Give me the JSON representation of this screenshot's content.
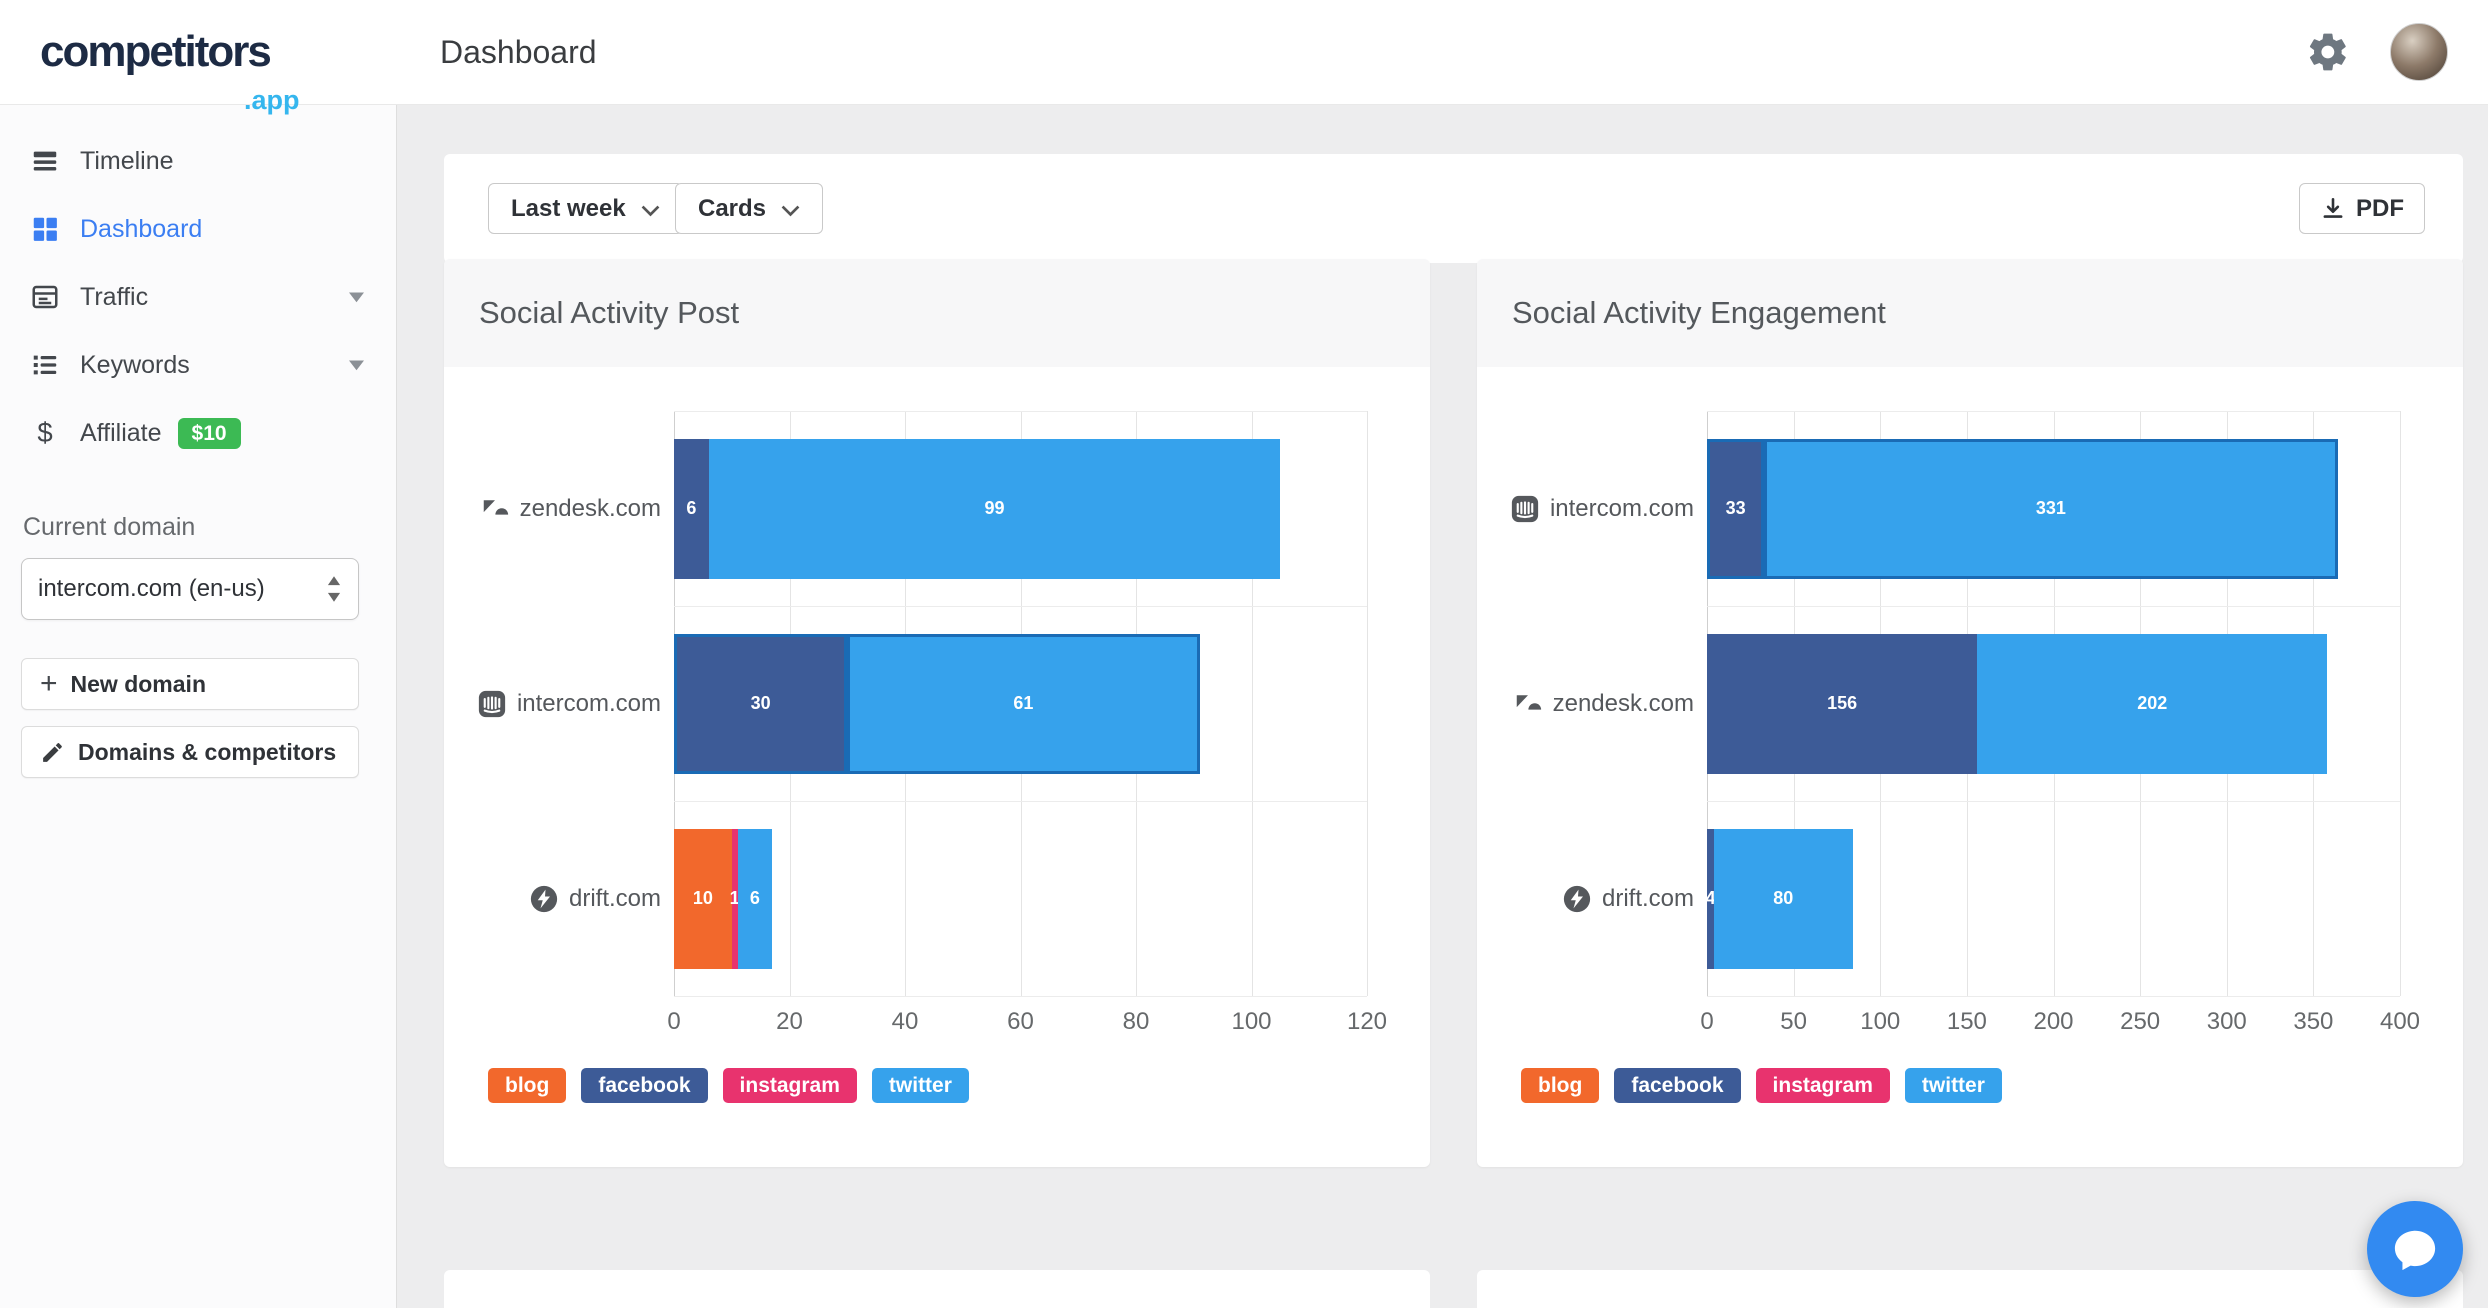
{
  "header": {
    "logo_main": "competitors",
    "logo_suffix": ".app",
    "title": "Dashboard"
  },
  "sidebar": {
    "items": [
      {
        "label": "Timeline",
        "icon": "timeline",
        "active": false
      },
      {
        "label": "Dashboard",
        "icon": "dashboard",
        "active": true
      },
      {
        "label": "Traffic",
        "icon": "traffic",
        "expandable": true
      },
      {
        "label": "Keywords",
        "icon": "keywords",
        "expandable": true
      },
      {
        "label": "Affiliate",
        "icon": "affiliate",
        "badge": "$10"
      }
    ],
    "current_domain_label": "Current domain",
    "domain_select_value": "intercom.com (en-us)",
    "new_domain_button": "New domain",
    "domains_competitors_button": "Domains & competitors"
  },
  "toolbar": {
    "range_select": "Last week",
    "view_select": "Cards",
    "pdf_button": "PDF"
  },
  "colors": {
    "accent_blue": "#3b7ef2",
    "badge_green": "#3cba54",
    "highlight_border": "#1a6bb5",
    "chat_launcher": "#328af1"
  },
  "chart_data": [
    {
      "type": "bar",
      "orientation": "horizontal",
      "stacked": true,
      "title": "Social Activity Post",
      "categories": [
        "zendesk.com",
        "intercom.com",
        "drift.com"
      ],
      "category_icons": [
        "zendesk",
        "intercom",
        "drift"
      ],
      "highlighted_category": "intercom.com",
      "series": [
        {
          "name": "blog",
          "color": "#f2682c",
          "values": [
            0,
            0,
            10
          ]
        },
        {
          "name": "facebook",
          "color": "#3d5b97",
          "values": [
            6,
            30,
            0
          ]
        },
        {
          "name": "instagram",
          "color": "#e8336e",
          "values": [
            0,
            0,
            1
          ]
        },
        {
          "name": "twitter",
          "color": "#36a2ec",
          "values": [
            99,
            61,
            6
          ]
        }
      ],
      "xlim": [
        0,
        120
      ],
      "xticks": [
        0,
        20,
        40,
        60,
        80,
        100,
        120
      ],
      "legend": [
        "blog",
        "facebook",
        "instagram",
        "twitter"
      ],
      "grid": true,
      "legend_position": "bottom-left"
    },
    {
      "type": "bar",
      "orientation": "horizontal",
      "stacked": true,
      "title": "Social Activity Engagement",
      "categories": [
        "intercom.com",
        "zendesk.com",
        "drift.com"
      ],
      "category_icons": [
        "intercom",
        "zendesk",
        "drift"
      ],
      "highlighted_category": "intercom.com",
      "series": [
        {
          "name": "blog",
          "color": "#f2682c",
          "values": [
            0,
            0,
            0
          ]
        },
        {
          "name": "facebook",
          "color": "#3d5b97",
          "values": [
            33,
            156,
            4
          ]
        },
        {
          "name": "instagram",
          "color": "#e8336e",
          "values": [
            0,
            0,
            0
          ]
        },
        {
          "name": "twitter",
          "color": "#36a2ec",
          "values": [
            331,
            202,
            80
          ]
        }
      ],
      "xlim": [
        0,
        400
      ],
      "xticks": [
        0,
        50,
        100,
        150,
        200,
        250,
        300,
        350,
        400
      ],
      "legend": [
        "blog",
        "facebook",
        "instagram",
        "twitter"
      ],
      "grid": true,
      "legend_position": "bottom-left"
    }
  ]
}
